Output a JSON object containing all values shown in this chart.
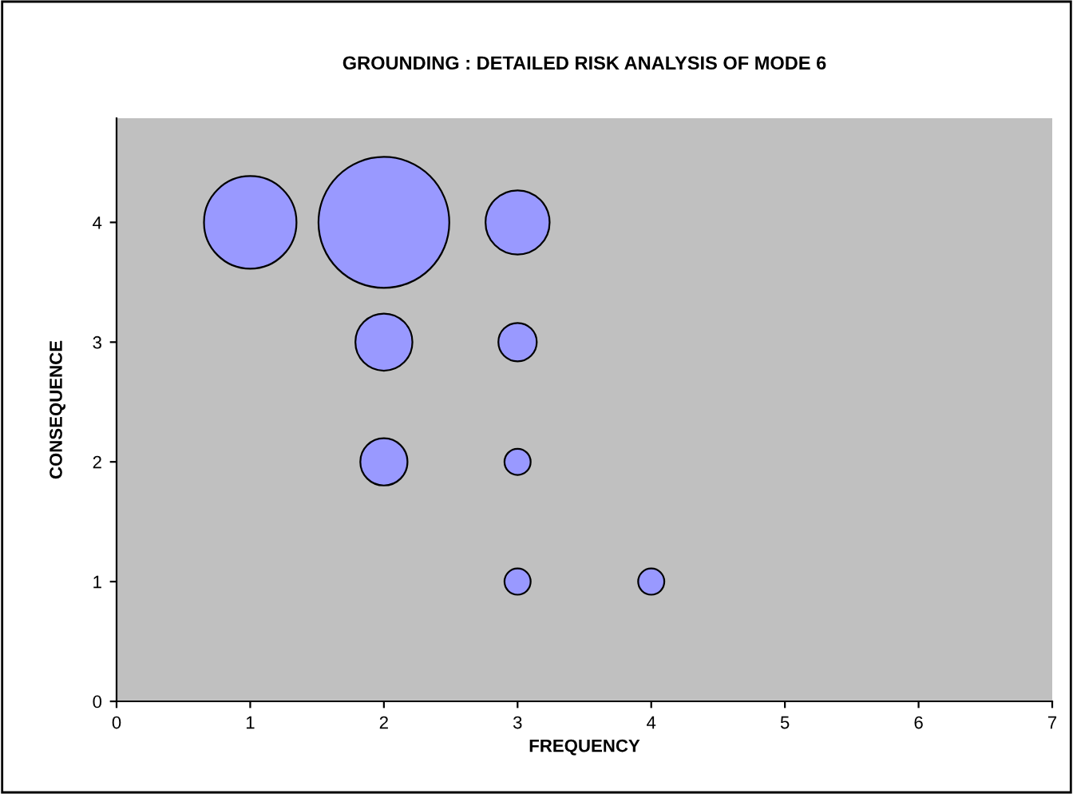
{
  "chart_data": {
    "type": "bubble",
    "title": "GROUNDING : DETAILED RISK ANALYSIS OF MODE 6",
    "xlabel": "FREQUENCY",
    "ylabel": "CONSEQUENCE",
    "x": [
      1,
      2,
      3,
      2,
      3,
      2,
      3,
      3,
      4
    ],
    "values": [
      4,
      4,
      4,
      3,
      3,
      2,
      2,
      1,
      1
    ],
    "sizes": [
      0.5,
      1,
      0.24,
      0.19,
      0.086,
      0.13,
      0.04,
      0.04,
      0.04
    ],
    "color": "#9999ff",
    "xlim": [
      0,
      7
    ],
    "xticks": [
      0,
      1,
      2,
      3,
      4,
      5,
      6,
      7
    ],
    "ylim": [
      0,
      4.87
    ],
    "yticks": [
      0,
      1,
      2,
      3,
      4
    ],
    "grid": false,
    "legend": false
  }
}
